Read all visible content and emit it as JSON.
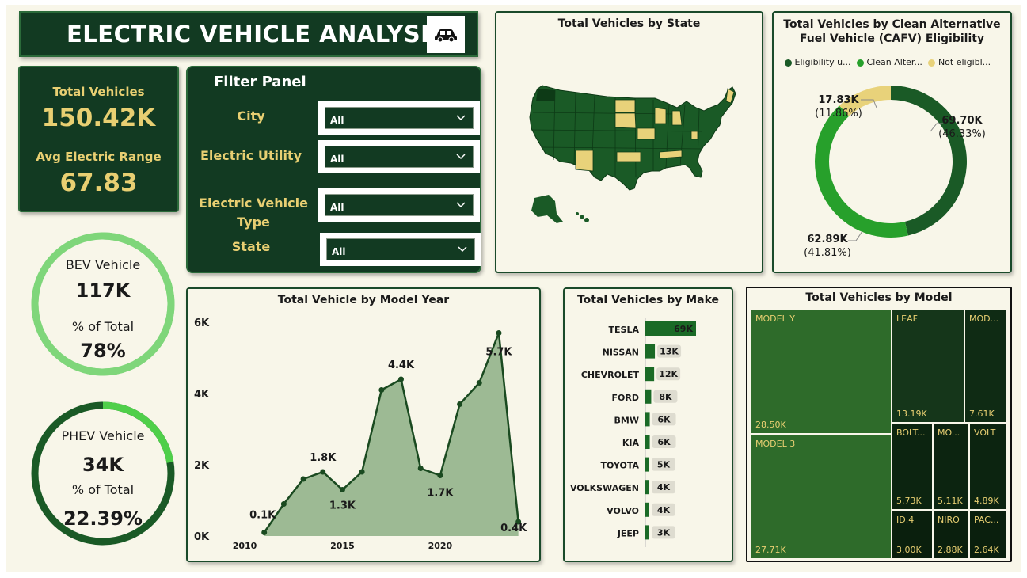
{
  "title": {
    "text": "ELECTRIC VEHICLE ANALYSIS",
    "icon": "car-icon"
  },
  "kpis": {
    "total_vehicles_label": "Total Vehicles",
    "total_vehicles_value": "150.42K",
    "avg_range_label": "Avg Electric Range",
    "avg_range_value": "67.83"
  },
  "filter_panel": {
    "title": "Filter Panel",
    "filters": [
      {
        "label": "City",
        "value": "All"
      },
      {
        "label": "Electric Utility",
        "value": "All"
      },
      {
        "label": "Electric Vehicle Type",
        "value": "All"
      },
      {
        "label": "State",
        "value": "All"
      }
    ]
  },
  "bev": {
    "label": "BEV Vehicle",
    "value": "117K",
    "pct_label": "% of Total",
    "pct_value": "78%",
    "fraction": 0.78
  },
  "phev": {
    "label": "PHEV Vehicle",
    "value": "34K",
    "pct_label": "% of Total",
    "pct_value": "22.39%",
    "fraction": 0.2239
  },
  "map": {
    "title": "Total Vehicles by State"
  },
  "cafv": {
    "title_line1": "Total Vehicles by Clean Alternative",
    "title_line2": "Fuel Vehicle (CAFV) Eligibility",
    "legend": [
      {
        "label": "Eligibility u...",
        "color": "#1a5a26"
      },
      {
        "label": "Clean Alter...",
        "color": "#27a02b"
      },
      {
        "label": "Not eligibl...",
        "color": "#e8d27a"
      }
    ],
    "slices": [
      {
        "value": 69.7,
        "label1": "69.70K",
        "label2": "(46.33%)",
        "color": "#1a5a26"
      },
      {
        "value": 62.89,
        "label1": "62.89K",
        "label2": "(41.81%)",
        "color": "#27a02b"
      },
      {
        "value": 17.83,
        "label1": "17.83K",
        "label2": "(11.86%)",
        "color": "#e8d27a"
      }
    ]
  },
  "model_year": {
    "title": "Total Vehicle by Model Year",
    "y_ticks": [
      "0K",
      "2K",
      "4K",
      "6K"
    ],
    "x_ticks": [
      "2010",
      "2015",
      "2020"
    ],
    "annotations": [
      "0.1K",
      "1.8K",
      "1.3K",
      "4.4K",
      "1.7K",
      "5.7K",
      "0.4K"
    ]
  },
  "make": {
    "title": "Total Vehicles by Make"
  },
  "treemap": {
    "title": "Total Vehicles by Model",
    "cells": [
      {
        "name": "MODEL Y",
        "value": "28.50K"
      },
      {
        "name": "MODEL 3",
        "value": "27.71K"
      },
      {
        "name": "LEAF",
        "value": "13.19K"
      },
      {
        "name": "MOD...",
        "value": "7.61K"
      },
      {
        "name": "BOLT...",
        "value": "5.73K"
      },
      {
        "name": "MO...",
        "value": "5.11K"
      },
      {
        "name": "VOLT",
        "value": "4.89K"
      },
      {
        "name": "ID.4",
        "value": "3.00K"
      },
      {
        "name": "NIRO",
        "value": "2.88K"
      },
      {
        "name": "PAC...",
        "value": "2.64K"
      }
    ]
  },
  "chart_data": [
    {
      "type": "area",
      "title": "Total Vehicle by Model Year",
      "x": [
        2011,
        2012,
        2013,
        2014,
        2015,
        2016,
        2017,
        2018,
        2019,
        2020,
        2021,
        2022,
        2023,
        2024
      ],
      "values": [
        0.1,
        0.9,
        1.6,
        1.8,
        1.3,
        1.8,
        4.1,
        4.4,
        1.9,
        1.7,
        3.7,
        4.3,
        5.7,
        0.4
      ],
      "xlim": [
        2010,
        2024.5
      ],
      "ylim": [
        0,
        6
      ],
      "units": "K"
    },
    {
      "type": "bar",
      "title": "Total Vehicles by Make",
      "categories": [
        "TESLA",
        "NISSAN",
        "CHEVROLET",
        "FORD",
        "BMW",
        "KIA",
        "TOYOTA",
        "VOLKSWAGEN",
        "VOLVO",
        "JEEP"
      ],
      "values": [
        69,
        13,
        12,
        8,
        6,
        6,
        5,
        4,
        4,
        3
      ],
      "labels": [
        "69K",
        "13K",
        "12K",
        "8K",
        "6K",
        "6K",
        "5K",
        "4K",
        "4K",
        "3K"
      ],
      "units": "K"
    }
  ]
}
